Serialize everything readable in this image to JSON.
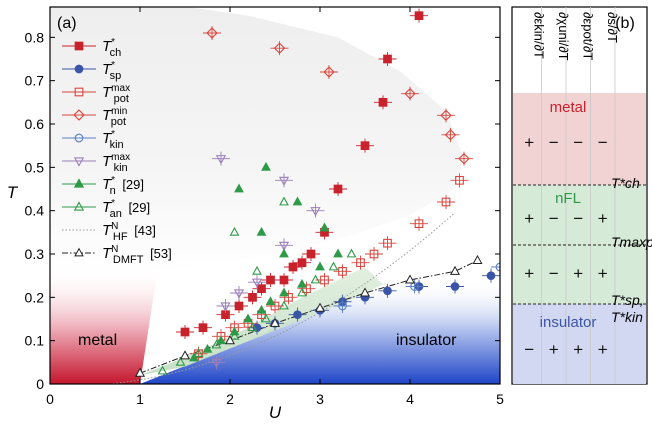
{
  "chart_data": {
    "type": "scatter",
    "panel_a": {
      "label": "(a)",
      "xlabel": "U",
      "ylabel": "T",
      "xlim": [
        0,
        5
      ],
      "ylim": [
        0,
        0.87
      ],
      "xticks": [
        "0",
        "1",
        "2",
        "3",
        "4",
        "5"
      ],
      "yticks": [
        "0",
        "0.1",
        "0.2",
        "0.3",
        "0.4",
        "0.5",
        "0.6",
        "0.7",
        "0.8"
      ],
      "region_labels": [
        "metal",
        "insulator"
      ],
      "legend_placement": "top-left",
      "series": [
        {
          "name": "T*ch",
          "label": "T",
          "sub": "ch",
          "sup": "*",
          "ref": "",
          "marker": "square",
          "filled": true,
          "color": "#c8232c",
          "points": [
            [
              1.5,
              0.12
            ],
            [
              1.7,
              0.13
            ],
            [
              1.95,
              0.16
            ],
            [
              2.1,
              0.18
            ],
            [
              2.25,
              0.2
            ],
            [
              2.35,
              0.22
            ],
            [
              2.45,
              0.24
            ],
            [
              2.6,
              0.24
            ],
            [
              2.7,
              0.27
            ],
            [
              2.8,
              0.28
            ],
            [
              2.9,
              0.3
            ],
            [
              3.05,
              0.35
            ],
            [
              3.2,
              0.45
            ],
            [
              3.5,
              0.55
            ],
            [
              3.7,
              0.65
            ],
            [
              3.75,
              0.75
            ],
            [
              4.1,
              0.85
            ]
          ]
        },
        {
          "name": "T*sp",
          "label": "T",
          "sub": "sp",
          "sup": "*",
          "ref": "",
          "marker": "circle",
          "filled": true,
          "color": "#3a55a8",
          "points": [
            [
              2.3,
              0.13
            ],
            [
              2.5,
              0.14
            ],
            [
              2.75,
              0.16
            ],
            [
              3.0,
              0.17
            ],
            [
              3.25,
              0.19
            ],
            [
              3.5,
              0.2
            ],
            [
              3.75,
              0.215
            ],
            [
              4.1,
              0.225
            ],
            [
              4.5,
              0.225
            ],
            [
              4.9,
              0.25
            ]
          ]
        },
        {
          "name": "Tmaxpot",
          "label": "T",
          "sub": "pot",
          "sup": "max",
          "ref": "",
          "marker": "square",
          "filled": false,
          "color": "#d9453d",
          "points": [
            [
              1.65,
              0.07
            ],
            [
              1.9,
              0.11
            ],
            [
              2.05,
              0.13
            ],
            [
              2.2,
              0.14
            ],
            [
              2.35,
              0.16
            ],
            [
              2.5,
              0.18
            ],
            [
              2.65,
              0.2
            ],
            [
              2.85,
              0.22
            ],
            [
              3.05,
              0.24
            ],
            [
              3.25,
              0.26
            ],
            [
              3.45,
              0.28
            ],
            [
              3.6,
              0.3
            ],
            [
              3.75,
              0.325
            ],
            [
              4.1,
              0.37
            ],
            [
              4.4,
              0.42
            ],
            [
              4.55,
              0.47
            ]
          ]
        },
        {
          "name": "Tminpot",
          "label": "T",
          "sub": "pot",
          "sup": "min",
          "ref": "",
          "marker": "diamond",
          "filled": false,
          "color": "#d9453d",
          "points": [
            [
              1.8,
              0.81
            ],
            [
              2.55,
              0.775
            ],
            [
              3.1,
              0.72
            ],
            [
              4.0,
              0.67
            ],
            [
              4.4,
              0.62
            ],
            [
              4.45,
              0.575
            ],
            [
              4.6,
              0.52
            ]
          ]
        },
        {
          "name": "T*kin",
          "label": "T",
          "sub": "kin",
          "sup": "*",
          "ref": "",
          "marker": "circle",
          "filled": false,
          "color": "#5a7fc4",
          "points": [
            [
              3.25,
              0.18
            ],
            [
              4.05,
              0.225
            ],
            [
              5.0,
              0.27
            ]
          ]
        },
        {
          "name": "Tmaxkin",
          "label": "T",
          "sub": "kin",
          "sup": "max",
          "ref": "",
          "marker": "triangle-down",
          "filled": false,
          "color": "#9b7fb8",
          "points": [
            [
              1.85,
              0.05
            ],
            [
              1.95,
              0.18
            ],
            [
              2.1,
              0.21
            ],
            [
              2.3,
              0.235
            ],
            [
              2.6,
              0.32
            ],
            [
              2.95,
              0.4
            ],
            [
              1.9,
              0.52
            ],
            [
              2.6,
              0.47
            ]
          ]
        },
        {
          "name": "T*n [29]",
          "label": "T",
          "sub": "n",
          "sup": "*",
          "ref": "[29]",
          "marker": "triangle",
          "filled": true,
          "color": "#2e9a48",
          "points": [
            [
              1.6,
              0.06
            ],
            [
              1.75,
              0.08
            ],
            [
              1.9,
              0.1
            ],
            [
              2.05,
              0.12
            ],
            [
              2.2,
              0.15
            ],
            [
              2.35,
              0.17
            ],
            [
              2.45,
              0.19
            ],
            [
              2.6,
              0.21
            ],
            [
              2.8,
              0.23
            ],
            [
              3.0,
              0.27
            ],
            [
              3.2,
              0.3
            ],
            [
              3.05,
              0.36
            ],
            [
              2.75,
              0.42
            ],
            [
              2.4,
              0.5
            ],
            [
              2.1,
              0.45
            ],
            [
              2.35,
              0.35
            ],
            [
              2.6,
              0.3
            ]
          ]
        },
        {
          "name": "T*an [29]",
          "label": "T",
          "sub": "an",
          "sup": "*",
          "ref": "[29]",
          "marker": "triangle",
          "filled": false,
          "color": "#2e9a48",
          "points": [
            [
              1.25,
              0.03
            ],
            [
              1.45,
              0.05
            ],
            [
              1.65,
              0.07
            ],
            [
              1.85,
              0.09
            ],
            [
              2.05,
              0.11
            ],
            [
              2.25,
              0.13
            ],
            [
              2.4,
              0.15
            ],
            [
              2.6,
              0.18
            ],
            [
              2.8,
              0.21
            ],
            [
              2.95,
              0.24
            ],
            [
              3.15,
              0.27
            ],
            [
              3.35,
              0.3
            ],
            [
              2.3,
              0.26
            ],
            [
              2.05,
              0.35
            ],
            [
              2.6,
              0.42
            ]
          ]
        },
        {
          "name": "TNHF [43]",
          "label": "T",
          "sub": "HF",
          "sup": "N",
          "ref": "[43]",
          "marker": "dotted-line",
          "filled": false,
          "color": "#9a9a9a"
        },
        {
          "name": "TNDMFT [53]",
          "label": "T",
          "sub": "DMFT",
          "sup": "N",
          "ref": "[53]",
          "marker": "dash-dot-triangle",
          "filled": false,
          "color": "#222222",
          "points": [
            [
              1.0,
              0.025
            ],
            [
              1.5,
              0.065
            ],
            [
              2.0,
              0.1
            ],
            [
              2.5,
              0.14
            ],
            [
              3.0,
              0.175
            ],
            [
              3.5,
              0.21
            ],
            [
              4.0,
              0.24
            ],
            [
              4.5,
              0.26
            ],
            [
              4.75,
              0.285
            ]
          ]
        }
      ]
    },
    "panel_b": {
      "label": "(b)",
      "columns": [
        "∂εkin/∂T",
        "∂χuni/∂T",
        "∂εpot/∂T",
        "∂s/∂T"
      ],
      "regions": [
        {
          "name": "metal",
          "color": "#f2d3d3",
          "text_color": "#c8232c",
          "signs": [
            [
              "+",
              "−",
              "−",
              "−"
            ]
          ]
        },
        {
          "name": "nFL",
          "color": "#d6ead8",
          "text_color": "#2e9a48",
          "signs": [
            [
              "+",
              "−",
              "−",
              "+"
            ],
            [
              "+",
              "−",
              "+",
              "+"
            ]
          ]
        },
        {
          "name": "insulator",
          "color": "#d3d8f2",
          "text_color": "#3a55a8",
          "signs": [
            [
              "−",
              "+",
              "+",
              "+"
            ]
          ]
        }
      ],
      "boundary_labels": [
        "T*ch",
        "Tmaxpot",
        "T*sp,",
        "T*kin"
      ]
    }
  }
}
